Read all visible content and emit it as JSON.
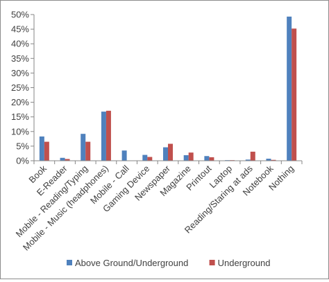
{
  "chart_data": {
    "type": "bar",
    "title": "",
    "xlabel": "",
    "ylabel": "",
    "ylim": [
      0,
      50
    ],
    "y_ticks": [
      "0%",
      "5%",
      "10%",
      "15%",
      "20%",
      "25%",
      "30%",
      "35%",
      "40%",
      "45%",
      "50%"
    ],
    "grid": false,
    "legend_position": "bottom",
    "categories": [
      "Book",
      "E-Reader",
      "Mobile - Reading/Typing",
      "Mobile - Music (headphones)",
      "Mobile - Call",
      "Gaming Device",
      "Newspaper",
      "Magazine",
      "Printout",
      "Laptop",
      "Reading/Staring at ads",
      "Notebook",
      "Nothing"
    ],
    "series": [
      {
        "name": "Above Ground/Underground",
        "color": "#4f81bd",
        "values": [
          8.3,
          1.0,
          9.2,
          16.8,
          3.5,
          2.0,
          4.6,
          1.9,
          1.6,
          0.2,
          0.4,
          0.7,
          49.3
        ]
      },
      {
        "name": "Underground",
        "color": "#c0504d",
        "values": [
          6.5,
          0.6,
          6.5,
          17.1,
          0.0,
          1.3,
          5.8,
          2.8,
          1.2,
          0.2,
          3.1,
          0.3,
          45.2
        ]
      }
    ]
  }
}
